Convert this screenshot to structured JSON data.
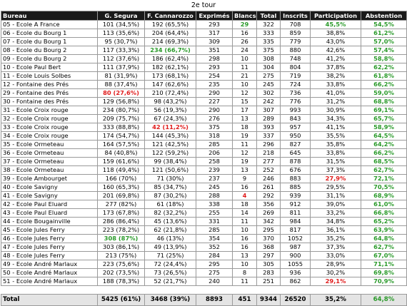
{
  "caption": "2e tour",
  "headers": [
    "Bureau",
    "G. Segura",
    "F. Cannarozzo",
    "Exprimés",
    "Blancs",
    "Total",
    "Inscrits",
    "Participation",
    "Abstention"
  ],
  "rows": [
    [
      "05 - Ecole A France",
      "101 (34,5%)",
      "192 (65,5%)",
      "293",
      "29",
      "322",
      "708",
      "45,5%",
      "54,5%"
    ],
    [
      "06 - Ecole du Bourg 1",
      "113 (35,6%)",
      "204 (64,4%)",
      "317",
      "16",
      "333",
      "859",
      "38,8%",
      "61,2%"
    ],
    [
      "07 - Ecole du Bourg 1",
      "95 (30,7%)",
      "214 (69,3%)",
      "309",
      "26",
      "335",
      "779",
      "43,0%",
      "57,0%"
    ],
    [
      "08 - Ecole du Bourg 2",
      "117 (33,3%)",
      "234 (66,7%)",
      "351",
      "24",
      "375",
      "880",
      "42,6%",
      "57,4%"
    ],
    [
      "09 - Ecole du Bourg 2",
      "112 (37,6%)",
      "186 (62,4%)",
      "298",
      "10",
      "308",
      "748",
      "41,2%",
      "58,8%"
    ],
    [
      "10 - Ecole Paul Bert",
      "111 (37,9%)",
      "182 (62,1%)",
      "293",
      "11",
      "304",
      "804",
      "37,8%",
      "62,2%"
    ],
    [
      "11 - Ecole Louis Solbes",
      "81 (31,9%)",
      "173 (68,1%)",
      "254",
      "21",
      "275",
      "719",
      "38,2%",
      "61,8%"
    ],
    [
      "12 - Fontaine des Prés",
      "88 (37,4%)",
      "147 (62,6%)",
      "235",
      "10",
      "245",
      "724",
      "33,8%",
      "66,2%"
    ],
    [
      "29 - Fontaine des Prés",
      "80 (27,6%)",
      "210 (72,4%)",
      "290",
      "12",
      "302",
      "736",
      "41,0%",
      "59,0%"
    ],
    [
      "30 - Fontaine des Prés",
      "129 (56,8%)",
      "98 (43,2%)",
      "227",
      "15",
      "242",
      "776",
      "31,2%",
      "68,8%"
    ],
    [
      "31 - Ecole Croix rouge",
      "234 (80,7%)",
      "56 (19,3%)",
      "290",
      "17",
      "307",
      "993",
      "30,9%",
      "69,1%"
    ],
    [
      "32 - Ecole Croix rouge",
      "209 (75,7%)",
      "67 (24,3%)",
      "276",
      "13",
      "289",
      "843",
      "34,3%",
      "65,7%"
    ],
    [
      "33 - Ecole Croix rouge",
      "333 (88,8%)",
      "42 (11,2%)",
      "375",
      "18",
      "393",
      "957",
      "41,1%",
      "58,9%"
    ],
    [
      "34 - Ecole Croix rouge",
      "174 (54,7%)",
      "144 (45,3%)",
      "318",
      "19",
      "337",
      "950",
      "35,5%",
      "64,5%"
    ],
    [
      "35 - Ecole Ormeteau",
      "164 (57,5%)",
      "121 (42,5%)",
      "285",
      "11",
      "296",
      "827",
      "35,8%",
      "64,2%"
    ],
    [
      "36 - Ecole Ormeteau",
      "84 (40,8%)",
      "122 (59,2%)",
      "206",
      "12",
      "218",
      "645",
      "33,8%",
      "66,2%"
    ],
    [
      "37 - Ecole Ormeteau",
      "159 (61,6%)",
      "99 (38,4%)",
      "258",
      "19",
      "277",
      "878",
      "31,5%",
      "68,5%"
    ],
    [
      "38 - Ecole Ormeteau",
      "118 (49,4%)",
      "121 (50,6%)",
      "239",
      "13",
      "252",
      "676",
      "37,3%",
      "62,7%"
    ],
    [
      "39 - Ecole Ambourget",
      "166 (70%)",
      "71 (30%)",
      "237",
      "9",
      "246",
      "883",
      "27,9%",
      "72,1%"
    ],
    [
      "40 - Ecole Savigny",
      "160 (65,3%)",
      "85 (34,7%)",
      "245",
      "16",
      "261",
      "885",
      "29,5%",
      "70,5%"
    ],
    [
      "41 - Ecole Savigny",
      "201 (69,8%)",
      "87 (30,2%)",
      "288",
      "4",
      "292",
      "939",
      "31,1%",
      "68,9%"
    ],
    [
      "42 - Ecole Paul Eluard",
      "277 (82%)",
      "61 (18%)",
      "338",
      "18",
      "356",
      "912",
      "39,0%",
      "61,0%"
    ],
    [
      "43 - Ecole Paul Eluard",
      "173 (67,8%)",
      "82 (32,2%)",
      "255",
      "14",
      "269",
      "811",
      "33,2%",
      "66,8%"
    ],
    [
      "44 - Ecole Bougainville",
      "286 (86,4%)",
      "45 (13,6%)",
      "331",
      "11",
      "342",
      "984",
      "34,8%",
      "65,2%"
    ],
    [
      "45 - Ecole Jules Ferry",
      "223 (78,2%)",
      "62 (21,8%)",
      "285",
      "10",
      "295",
      "817",
      "36,1%",
      "63,9%"
    ],
    [
      "46 - Ecole  Jules Ferry",
      "308 (87%)",
      "46 (13%)",
      "354",
      "16",
      "370",
      "1052",
      "35,2%",
      "64,8%"
    ],
    [
      "47 - Ecole  Jules Ferry",
      "303 (86,1%)",
      "49 (13,9%)",
      "352",
      "16",
      "368",
      "987",
      "37,3%",
      "62,7%"
    ],
    [
      "48 - Ecole  Jules Ferry",
      "213 (75%)",
      "71 (25%)",
      "284",
      "13",
      "297",
      "900",
      "33,0%",
      "67,0%"
    ],
    [
      "49 - Ecole André Marlaux",
      "223 (75,6%)",
      "72 (24,4%)",
      "295",
      "10",
      "305",
      "1055",
      "28,9%",
      "71,1%"
    ],
    [
      "50 - Ecole André Marlaux",
      "202 (73,5%)",
      "73 (26,5%)",
      "275",
      "8",
      "283",
      "936",
      "30,2%",
      "69,8%"
    ],
    [
      "51 - Ecole André Marlaux",
      "188 (78,3%)",
      "52 (21,7%)",
      "240",
      "11",
      "251",
      "862",
      "29,1%",
      "70,9%"
    ]
  ],
  "highlights": [
    {
      "row": 0,
      "col": 4,
      "color": "green"
    },
    {
      "row": 0,
      "col": 7,
      "color": "green"
    },
    {
      "row": 3,
      "col": 2,
      "color": "green"
    },
    {
      "row": 8,
      "col": 1,
      "color": "red"
    },
    {
      "row": 12,
      "col": 2,
      "color": "red"
    },
    {
      "row": 18,
      "col": 7,
      "color": "red"
    },
    {
      "row": 20,
      "col": 4,
      "color": "red"
    },
    {
      "row": 25,
      "col": 1,
      "color": "green"
    },
    {
      "row": 28,
      "col": 8,
      "color": "green"
    },
    {
      "row": 30,
      "col": 7,
      "color": "red"
    }
  ],
  "abstention_color": "green",
  "total": [
    "Total",
    "5425 (61%)",
    "3468 (39%)",
    "8893",
    "451",
    "9344",
    "26520",
    "35,2%",
    "64,8%"
  ],
  "colors": {
    "green": "#2a9a2a",
    "red": "#e01b1b",
    "header_bg": "#1a1a1a",
    "total_bg": "#e4e4e4"
  }
}
